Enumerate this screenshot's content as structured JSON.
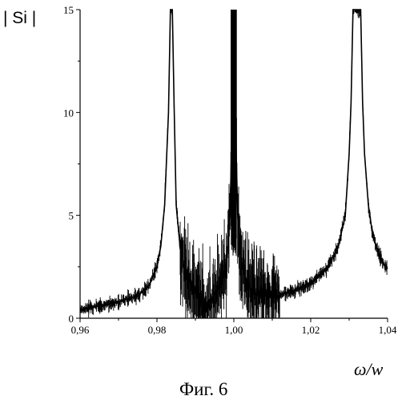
{
  "chart_data": {
    "type": "line",
    "title": "",
    "caption": "Фиг. 6",
    "xlabel": "ω/w",
    "ylabel": "| Si |",
    "xlim": [
      0.96,
      1.04
    ],
    "ylim": [
      0,
      15
    ],
    "xticks": [
      0.96,
      0.98,
      1.0,
      1.02,
      1.04
    ],
    "xtick_labels": [
      "0,96",
      "0,98",
      "1,00",
      "1,02",
      "1,04"
    ],
    "yticks": [
      0,
      5,
      10,
      15
    ],
    "ytick_labels": [
      "0",
      "5",
      "10",
      "15"
    ],
    "grid": false,
    "legend": "none",
    "line_color": "#000000",
    "series": [
      {
        "x": [
          0.96,
          0.965,
          0.97,
          0.975,
          0.978,
          0.98,
          0.981,
          0.982,
          0.983,
          0.9835,
          0.984,
          0.9845,
          0.985,
          0.986,
          0.987,
          0.988,
          0.99,
          0.992,
          0.993,
          0.994,
          0.996,
          0.998,
          0.999,
          0.9995,
          1.0,
          1.0005,
          1.001,
          1.002,
          1.004,
          1.006,
          1.008,
          1.01,
          1.015,
          1.02,
          1.024,
          1.027,
          1.029,
          1.03,
          1.0305,
          1.031,
          1.032,
          1.033,
          1.0335,
          1.034,
          1.035,
          1.036,
          1.037,
          1.038,
          1.039,
          1.04
        ],
        "y": [
          0.4,
          0.6,
          0.8,
          1.1,
          1.6,
          2.5,
          3.5,
          5.5,
          10.0,
          15,
          15,
          10.0,
          5.5,
          3.5,
          2.5,
          2.0,
          1.3,
          0.8,
          0.3,
          0.9,
          1.5,
          2.5,
          5.0,
          9.0,
          15,
          9.0,
          5.0,
          2.5,
          1.5,
          1.2,
          1.1,
          1.0,
          1.3,
          1.7,
          2.4,
          3.4,
          5.0,
          8.0,
          10.5,
          15,
          15,
          15,
          10.5,
          8.0,
          5.5,
          4.2,
          3.5,
          3.0,
          2.6,
          2.4
        ]
      }
    ]
  }
}
